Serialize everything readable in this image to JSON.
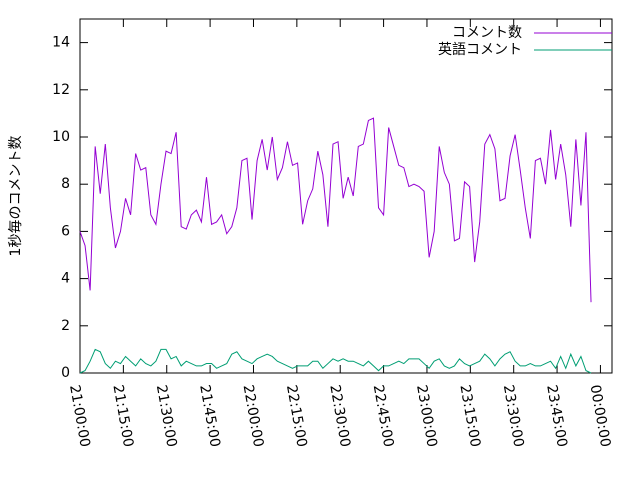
{
  "chart_data": {
    "type": "line",
    "y_label": "1秒毎のコメント数",
    "x": [
      0,
      1.75,
      3.5,
      5.25,
      7,
      8.75,
      10.5,
      12.25,
      14,
      15.75,
      17.5,
      19.25,
      21,
      22.75,
      24.5,
      26.25,
      28,
      29.75,
      31.5,
      33.25,
      35,
      36.75,
      38.5,
      40.25,
      42,
      43.75,
      45.5,
      47.25,
      49,
      50.75,
      52.5,
      54.25,
      56,
      57.75,
      59.5,
      61.25,
      63,
      64.75,
      66.5,
      68.25,
      70,
      71.75,
      73.5,
      75.25,
      77,
      78.75,
      80.5,
      82.25,
      84,
      85.75,
      87.5,
      89.25,
      91,
      92.75,
      94.5,
      96.25,
      98,
      99.75,
      101.5,
      103.25,
      105,
      106.75,
      108.5,
      110.25,
      112,
      113.75,
      115.5,
      117.25,
      119,
      120.75,
      122.5,
      124.25,
      126,
      127.75,
      129.5,
      131.25,
      133,
      134.75,
      136.5,
      138.25,
      140,
      141.75,
      143.5,
      145.25,
      147,
      148.75,
      150.5,
      152.25,
      154,
      155.75,
      157.5,
      159.25,
      161,
      162.75,
      164.5,
      166.25,
      168,
      169.75,
      171.5,
      173.25,
      175,
      176.75
    ],
    "series": [
      {
        "name": "コメント数",
        "color": "#9400d3",
        "values": [
          6.0,
          5.4,
          3.5,
          9.6,
          7.6,
          9.7,
          7.0,
          5.3,
          6.0,
          7.4,
          6.7,
          9.3,
          8.6,
          8.7,
          6.7,
          6.3,
          8.0,
          9.4,
          9.3,
          10.2,
          6.2,
          6.1,
          6.7,
          6.9,
          6.4,
          8.3,
          6.3,
          6.4,
          6.7,
          5.9,
          6.2,
          7.0,
          9.0,
          9.1,
          6.5,
          9.0,
          9.9,
          8.6,
          10.0,
          8.2,
          8.7,
          9.8,
          8.8,
          8.9,
          6.3,
          7.3,
          7.8,
          9.4,
          8.4,
          6.2,
          9.7,
          9.8,
          7.4,
          8.3,
          7.5,
          9.6,
          9.7,
          10.7,
          10.8,
          7.0,
          6.7,
          10.4,
          9.6,
          8.8,
          8.7,
          7.9,
          8.0,
          7.9,
          7.7,
          4.9,
          6.0,
          9.6,
          8.5,
          8.0,
          5.6,
          5.7,
          8.1,
          7.9,
          4.7,
          6.4,
          9.7,
          10.1,
          9.5,
          7.3,
          7.4,
          9.2,
          10.1,
          8.6,
          7.0,
          5.7,
          9.0,
          9.1,
          8.0,
          10.3,
          8.2,
          9.7,
          8.4,
          6.2,
          9.9,
          7.1,
          10.2,
          3.0
        ]
      },
      {
        "name": "英語コメント",
        "color": "#009e73",
        "values": [
          0,
          0.1,
          0.5,
          1.0,
          0.9,
          0.4,
          0.2,
          0.5,
          0.4,
          0.7,
          0.5,
          0.3,
          0.6,
          0.4,
          0.3,
          0.5,
          1.0,
          1.0,
          0.6,
          0.7,
          0.3,
          0.5,
          0.4,
          0.3,
          0.3,
          0.4,
          0.4,
          0.2,
          0.3,
          0.4,
          0.8,
          0.9,
          0.6,
          0.5,
          0.4,
          0.6,
          0.7,
          0.8,
          0.7,
          0.5,
          0.4,
          0.3,
          0.2,
          0.3,
          0.3,
          0.3,
          0.5,
          0.5,
          0.2,
          0.4,
          0.6,
          0.5,
          0.6,
          0.5,
          0.5,
          0.4,
          0.3,
          0.5,
          0.3,
          0.1,
          0.3,
          0.3,
          0.4,
          0.5,
          0.4,
          0.6,
          0.6,
          0.6,
          0.4,
          0.2,
          0.5,
          0.6,
          0.3,
          0.2,
          0.3,
          0.6,
          0.4,
          0.3,
          0.4,
          0.5,
          0.8,
          0.6,
          0.3,
          0.6,
          0.8,
          0.9,
          0.5,
          0.3,
          0.3,
          0.4,
          0.3,
          0.3,
          0.4,
          0.5,
          0.2,
          0.7,
          0.2,
          0.8,
          0.3,
          0.7,
          0.1,
          0.0
        ]
      }
    ],
    "xlim": [
      0,
      184
    ],
    "xticks": [
      {
        "value": 0,
        "label": "21:00:00"
      },
      {
        "value": 15,
        "label": "21:15:00"
      },
      {
        "value": 30,
        "label": "21:30:00"
      },
      {
        "value": 45,
        "label": "21:45:00"
      },
      {
        "value": 60,
        "label": "22:00:00"
      },
      {
        "value": 75,
        "label": "22:15:00"
      },
      {
        "value": 90,
        "label": "22:30:00"
      },
      {
        "value": 105,
        "label": "22:45:00"
      },
      {
        "value": 120,
        "label": "23:00:00"
      },
      {
        "value": 135,
        "label": "23:15:00"
      },
      {
        "value": 150,
        "label": "23:30:00"
      },
      {
        "value": 165,
        "label": "23:45:00"
      },
      {
        "value": 180,
        "label": "00:00:00"
      }
    ],
    "ylim": [
      0,
      15
    ],
    "yticks": [
      0,
      2,
      4,
      6,
      8,
      10,
      12,
      14
    ],
    "legend": "top-right"
  }
}
